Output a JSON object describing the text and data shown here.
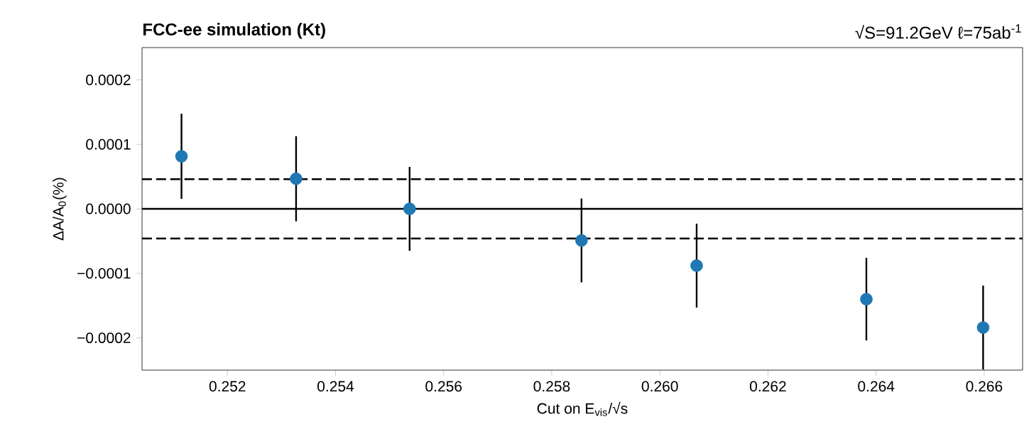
{
  "chart_data": {
    "type": "scatter",
    "title": "FCC-ee simulation (Kt)",
    "subtitle": "√S=91.2GeV  ℓ=75ab$^{-1}$",
    "xlabel": "Cut on E$_{vis}$/√s",
    "ylabel": "ΔA/A$_{0}$(%)",
    "x": [
      0.25115,
      0.25327,
      0.25537,
      0.25855,
      0.26068,
      0.26382,
      0.26598
    ],
    "values": [
      8.15e-05,
      4.67e-05,
      0.0,
      -4.9e-05,
      -8.8e-05,
      -0.00014,
      -0.000184
    ],
    "errors": [
      6.6e-05,
      6.6e-05,
      6.5e-05,
      6.5e-05,
      6.5e-05,
      6.4e-05,
      6.5e-05
    ],
    "color": "#1f77b4",
    "marker": "circle",
    "xlim": [
      0.25042,
      0.26671
    ],
    "ylim": [
      -0.00025,
      0.00025
    ],
    "xticks": [
      0.252,
      0.254,
      0.256,
      0.258,
      {
        "value": 0.26,
        "label": "0.260"
      },
      0.262,
      0.264,
      0.266
    ],
    "yticks": [
      {
        "value": -0.0002,
        "label": "−0.0002"
      },
      {
        "value": -0.0001,
        "label": "−0.0001"
      },
      {
        "value": 0.0,
        "label": "0.0000"
      },
      {
        "value": 0.0001,
        "label": "0.0001"
      },
      {
        "value": 0.0002,
        "label": "0.0002"
      }
    ],
    "ref_lines": [
      {
        "axis": "y",
        "value": 0.0,
        "color": "#000000",
        "line_style": "solid"
      },
      {
        "axis": "y",
        "value": 4.6e-05,
        "color": "#000000",
        "line_style": "dashed"
      },
      {
        "axis": "y",
        "value": -4.6e-05,
        "color": "#000000",
        "line_style": "dashed"
      }
    ]
  }
}
